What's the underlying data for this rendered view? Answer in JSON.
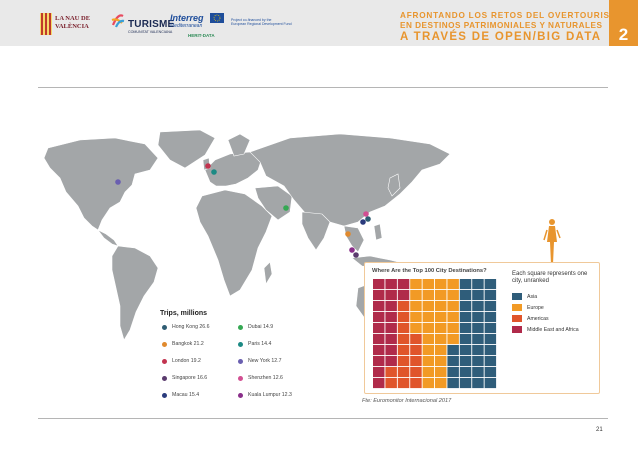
{
  "header": {
    "logo1_lines": [
      "LA NAU DE",
      "VALÈNCIA"
    ],
    "logo2_word": "TURISME",
    "logo2_sub": "COMUNITAT VALENCIANA",
    "logo3_word": "Interreg",
    "logo3_sub": "Mediterranean",
    "logo3_tag": "HERIT-DATA",
    "logo4_lines": [
      "Project co-financed by the",
      "European Regional Development Fund"
    ],
    "title_line1": "AFRONTANDO LOS RETOS DEL OVERTOURISM",
    "title_line2": "EN DESTINOS PATRIMONIALES Y NATURALES",
    "title_line3": "A TRAVÉS DE OPEN/BIG DATA",
    "chapter": "2"
  },
  "legend": {
    "title": "Trips, millions",
    "items": [
      {
        "label": "Hong Kong 26.6",
        "color": "#2f5d73"
      },
      {
        "label": "Bangkok 21.2",
        "color": "#e08a2e"
      },
      {
        "label": "London 19.2",
        "color": "#c2334f"
      },
      {
        "label": "Singapore 16.6",
        "color": "#5b3b6e"
      },
      {
        "label": "Macau 15.4",
        "color": "#2a3b7d"
      },
      {
        "label": "Dubai 14.9",
        "color": "#35a853"
      },
      {
        "label": "Paris 14.4",
        "color": "#1c8a84"
      },
      {
        "label": "New York 12.7",
        "color": "#6a5fb0"
      },
      {
        "label": "Shenzhen 12.6",
        "color": "#d24f92"
      },
      {
        "label": "Kuala Lumpur 12.3",
        "color": "#8a2f8a"
      }
    ]
  },
  "inset": {
    "title": "Where Are the Top 100 City Destinations?",
    "note": "Each square represents one city, unranked",
    "categories": [
      {
        "label": "Asia",
        "color": "#2f5d7a"
      },
      {
        "label": "Europe",
        "color": "#f29a25"
      },
      {
        "label": "Americas",
        "color": "#e0552b"
      },
      {
        "label": "Middle East and Africa",
        "color": "#b02a4a"
      }
    ]
  },
  "source": "Fte: Euromonitor Internacional 2017",
  "page_number": "21"
}
